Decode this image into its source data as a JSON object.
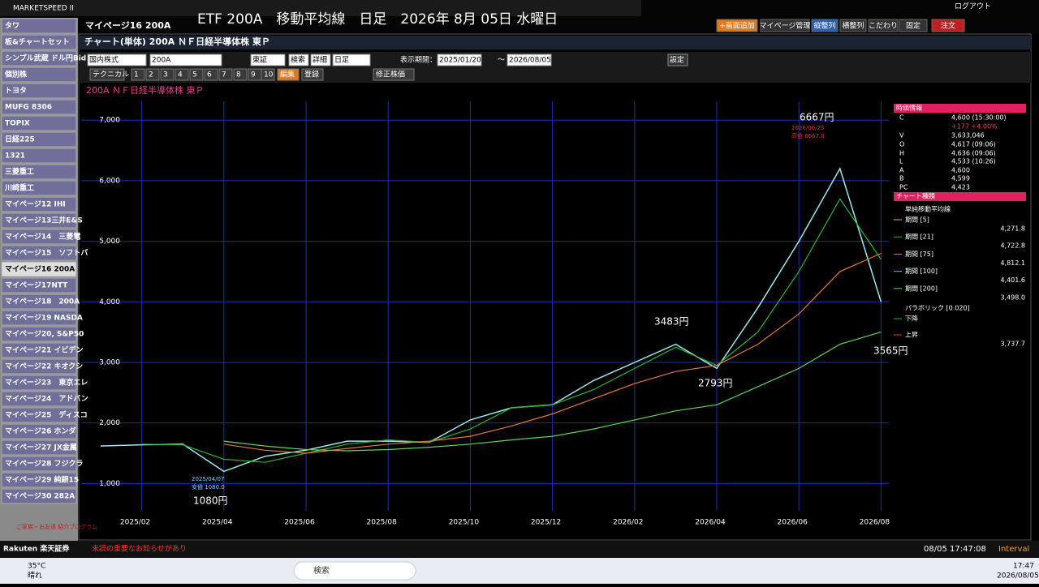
{
  "app": {
    "logo": "MARKETSPEED II",
    "page_tab": "マイページ16  200A",
    "title": "ETF 200A　移動平均線　日足　2026年 8月 05日 水曜日",
    "buttons": [
      "+画面追加",
      "マイページ管理",
      "縦整列",
      "横整列",
      "こだわり",
      "固定",
      "注文"
    ],
    "logout": "ログアウト"
  },
  "sidebar": {
    "items": [
      "タワ",
      "板&チャートセット",
      "シンプル武蔵 ドル円Bid",
      "個別株",
      "トヨタ",
      "MUFG  8306",
      "TOPIX",
      "日経225",
      "1321",
      "三菱重工",
      "川崎重工",
      "マイページ12 IHI",
      "マイページ13三井E&S",
      "マイページ14　三菱電",
      "マイページ15　ソフトバ",
      "マイページ16  200A",
      "マイページ17NTT",
      "マイページ18　200A",
      "マイページ19 NASDA",
      "マイページ20, S&P50",
      "マイページ21 イビデン",
      "マイページ22 キオクシ",
      "マイページ23　東京エレ",
      "マイページ24　アドバン",
      "マイページ25　ディスコ",
      "マイページ26 ホンダ",
      "マイページ27 JX金属",
      "マイページ28 フジクラ",
      "マイページ29 純銀15",
      "マイページ30 282A"
    ],
    "active": 15,
    "promo": "ご家族・お友達 紹介プログラム"
  },
  "window": {
    "title": "チャート(単体) 200A ＮＦ日経半導体株 東Ｐ",
    "toolbar1": [
      "国内株式",
      "200A",
      "東証",
      "検索",
      "詳細",
      "日足",
      "表示期間：",
      "2025/01/20",
      "～",
      "2026/08/05",
      "設定"
    ],
    "toolbar2": [
      "テクニカル",
      "1",
      "2",
      "3",
      "4",
      "5",
      "6",
      "7",
      "8",
      "9",
      "10",
      "編集",
      "登録",
      "修正株価"
    ],
    "chart_label": "200A ＮＦ日経半導体株 東Ｐ"
  },
  "chart_data": {
    "type": "line",
    "categories": [
      null,
      "2025/02",
      null,
      "2025/04",
      null,
      "2025/06",
      null,
      "2025/08",
      null,
      "2025/10",
      null,
      "2025/12",
      null,
      "2026/02",
      null,
      "2026/04",
      null,
      "2026/06",
      null,
      "2026/08"
    ],
    "series": [
      {
        "color": "#9fe8f0",
        "values": [
          1620,
          1640,
          1650,
          1200,
          1450,
          1550,
          1700,
          1700,
          1680,
          2050,
          2250,
          2300,
          2700,
          3000,
          3300,
          2900,
          3900,
          5000,
          6200,
          4000
        ]
      },
      {
        "color": "#2fb52f",
        "values": [
          null,
          1650,
          1640,
          1400,
          1350,
          1500,
          1650,
          1720,
          1680,
          1900,
          2250,
          2300,
          2550,
          2900,
          3250,
          2950,
          3500,
          4500,
          5700,
          4700
        ]
      },
      {
        "color": "#e07a30",
        "values": [
          null,
          null,
          null,
          1650,
          1550,
          1500,
          1580,
          1650,
          1700,
          1780,
          1950,
          2150,
          2400,
          2650,
          2850,
          2950,
          3300,
          3800,
          4500,
          4800
        ]
      },
      {
        "color": "#5fd35f",
        "values": [
          null,
          null,
          null,
          1700,
          1620,
          1560,
          1540,
          1560,
          1600,
          1650,
          1720,
          1780,
          1900,
          2050,
          2200,
          2300,
          2600,
          2900,
          3300,
          3500
        ]
      }
    ],
    "ylim": [
      550,
      7310
    ],
    "yticks": [
      {
        "value": 1000,
        "label": "1,000"
      },
      {
        "value": 2000,
        "label": "2,000"
      },
      {
        "value": 3000,
        "label": "3,000"
      },
      {
        "value": 4000,
        "label": "4,000"
      },
      {
        "value": 5000,
        "label": "5,000"
      },
      {
        "value": 6000,
        "label": "6,000"
      },
      {
        "value": 7000,
        "label": "7,000"
      }
    ],
    "grid": true,
    "annotations": [
      "6667円",
      "2026/06/23",
      "高値 6667.0",
      "3483円",
      "2793円",
      "3565円",
      "1080円",
      "2025/04/07",
      "安値 1080.0"
    ]
  },
  "info_panel": {
    "header": "時価情報",
    "rows": [
      {
        "key": "C",
        "value": "4,600 (15:30:00)"
      },
      {
        "key": "V",
        "value": "3,633,046"
      },
      {
        "key": "O",
        "value": "4,617 (09:06)"
      },
      {
        "key": "H",
        "value": "4,636 (09:06)"
      },
      {
        "key": "L",
        "value": "4,533 (10:26)"
      },
      {
        "key": "A",
        "value": "4,600"
      },
      {
        "key": "B",
        "value": "4,599"
      },
      {
        "key": "PC",
        "value": "4,423"
      }
    ],
    "change": "+177  +4.00%",
    "chart_type_header": "チャート種類",
    "indicator": "単純移動平均線",
    "periods": [
      {
        "label": "期間 [5]",
        "value": "4,271.8"
      },
      {
        "label": "期間 [21]",
        "value": "4,722.8"
      },
      {
        "label": "期間 [75]",
        "value": "4,812.1"
      },
      {
        "label": "期間 [100]",
        "value": "4,401.6"
      },
      {
        "label": "期間 [200]",
        "value": "3,498.0"
      }
    ],
    "sar": "パラボリック [0.020]",
    "sar_rows": [
      "下降",
      "上昇"
    ],
    "sar_value": "3,737.7"
  },
  "status": {
    "broker": "Rakuten 楽天証券",
    "notice": "未読の重要なお知らせがあり",
    "clock": "08/05 17:47:08",
    "interval": "Interval"
  },
  "taskbar": {
    "temp": "35°C",
    "weather": "晴れ",
    "search": "検索",
    "time": "17:47",
    "date": "2026/08/05"
  }
}
